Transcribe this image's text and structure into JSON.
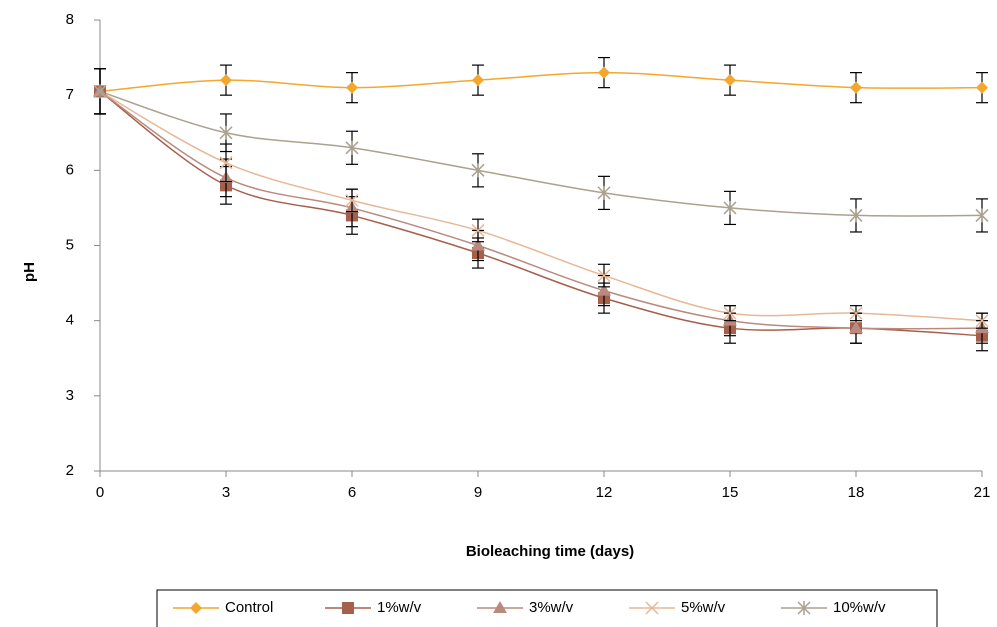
{
  "chart_data": {
    "type": "line",
    "x_label": "Bioleaching time (days)",
    "y_label": "pH",
    "x": [
      0,
      3,
      6,
      9,
      12,
      15,
      18,
      21
    ],
    "xlim": [
      0,
      21
    ],
    "xticks": [
      0,
      3,
      6,
      9,
      12,
      15,
      18,
      21
    ],
    "ylim": [
      2,
      8
    ],
    "yticks": [
      2,
      3,
      4,
      5,
      6,
      7,
      8
    ],
    "grid": false,
    "legend": "bottom",
    "series": [
      {
        "name": "Control",
        "color": "#f4a72c",
        "marker": "diamond",
        "values": [
          7.05,
          7.2,
          7.1,
          7.2,
          7.3,
          7.2,
          7.1,
          7.1
        ],
        "errors": [
          0.3,
          0.2,
          0.2,
          0.2,
          0.2,
          0.2,
          0.2,
          0.2
        ]
      },
      {
        "name": "1%w/v",
        "color": "#a65f4b",
        "marker": "square",
        "values": [
          7.05,
          5.8,
          5.4,
          4.9,
          4.3,
          3.9,
          3.9,
          3.8
        ],
        "errors": [
          0.3,
          0.25,
          0.25,
          0.2,
          0.2,
          0.2,
          0.2,
          0.2
        ]
      },
      {
        "name": "3%w/v",
        "color": "#b98b80",
        "marker": "triangle",
        "values": [
          7.05,
          5.9,
          5.5,
          5.0,
          4.4,
          4.0,
          3.9,
          3.9
        ],
        "errors": [
          0.3,
          0.25,
          0.25,
          0.2,
          0.2,
          0.2,
          0.2,
          0.2
        ]
      },
      {
        "name": "5%w/v",
        "color": "#e6b896",
        "marker": "x",
        "values": [
          7.05,
          6.1,
          5.6,
          5.2,
          4.6,
          4.1,
          4.1,
          4.0
        ],
        "errors": [
          0.3,
          0.25,
          0.15,
          0.15,
          0.15,
          0.1,
          0.1,
          0.1
        ]
      },
      {
        "name": "10%w/v",
        "color": "#aaa28f",
        "marker": "star",
        "values": [
          7.05,
          6.5,
          6.3,
          6.0,
          5.7,
          5.5,
          5.4,
          5.4
        ],
        "errors": [
          0.3,
          0.25,
          0.22,
          0.22,
          0.22,
          0.22,
          0.22,
          0.22
        ]
      }
    ]
  }
}
